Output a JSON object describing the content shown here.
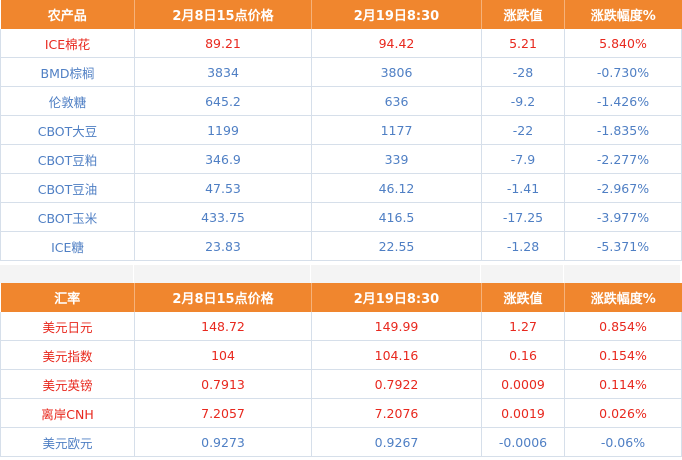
{
  "agri_table": {
    "headers": [
      "农产品",
      "2月8日15点价格",
      "2月19日8:30",
      "涨跌值",
      "涨跌幅度%"
    ],
    "rows": [
      {
        "name": "ICE棉花",
        "price_feb8": "89.21",
        "price_feb19": "94.42",
        "change": "5.21",
        "pct": "5.840%",
        "trend": "up"
      },
      {
        "name": "BMD棕榈",
        "price_feb8": "3834",
        "price_feb19": "3806",
        "change": "-28",
        "pct": "-0.730%",
        "trend": "down"
      },
      {
        "name": "伦敦糖",
        "price_feb8": "645.2",
        "price_feb19": "636",
        "change": "-9.2",
        "pct": "-1.426%",
        "trend": "down"
      },
      {
        "name": "CBOT大豆",
        "price_feb8": "1199",
        "price_feb19": "1177",
        "change": "-22",
        "pct": "-1.835%",
        "trend": "down"
      },
      {
        "name": "CBOT豆粕",
        "price_feb8": "346.9",
        "price_feb19": "339",
        "change": "-7.9",
        "pct": "-2.277%",
        "trend": "down"
      },
      {
        "name": "CBOT豆油",
        "price_feb8": "47.53",
        "price_feb19": "46.12",
        "change": "-1.41",
        "pct": "-2.967%",
        "trend": "down"
      },
      {
        "name": "CBOT玉米",
        "price_feb8": "433.75",
        "price_feb19": "416.5",
        "change": "-17.25",
        "pct": "-3.977%",
        "trend": "down"
      },
      {
        "name": "ICE糖",
        "price_feb8": "23.83",
        "price_feb19": "22.55",
        "change": "-1.28",
        "pct": "-5.371%",
        "trend": "down"
      }
    ]
  },
  "fx_table": {
    "headers": [
      "汇率",
      "2月8日15点价格",
      "2月19日8:30",
      "涨跌值",
      "涨跌幅度%"
    ],
    "rows": [
      {
        "name": "美元日元",
        "price_feb8": "148.72",
        "price_feb19": "149.99",
        "change": "1.27",
        "pct": "0.854%",
        "trend": "up"
      },
      {
        "name": "美元指数",
        "price_feb8": "104",
        "price_feb19": "104.16",
        "change": "0.16",
        "pct": "0.154%",
        "trend": "up"
      },
      {
        "name": "美元英镑",
        "price_feb8": "0.7913",
        "price_feb19": "0.7922",
        "change": "0.0009",
        "pct": "0.114%",
        "trend": "up"
      },
      {
        "name": "离岸CNH",
        "price_feb8": "7.2057",
        "price_feb19": "7.2076",
        "change": "0.0019",
        "pct": "0.026%",
        "trend": "up"
      },
      {
        "name": "美元欧元",
        "price_feb8": "0.9273",
        "price_feb19": "0.9267",
        "change": "-0.0006",
        "pct": "-0.06%",
        "trend": "down"
      }
    ]
  },
  "colors": {
    "header_bg": "#f0862e",
    "header_text": "#ffffff",
    "up": "#e8281e",
    "down": "#4f7fc4",
    "grid": "#d6dfea"
  }
}
